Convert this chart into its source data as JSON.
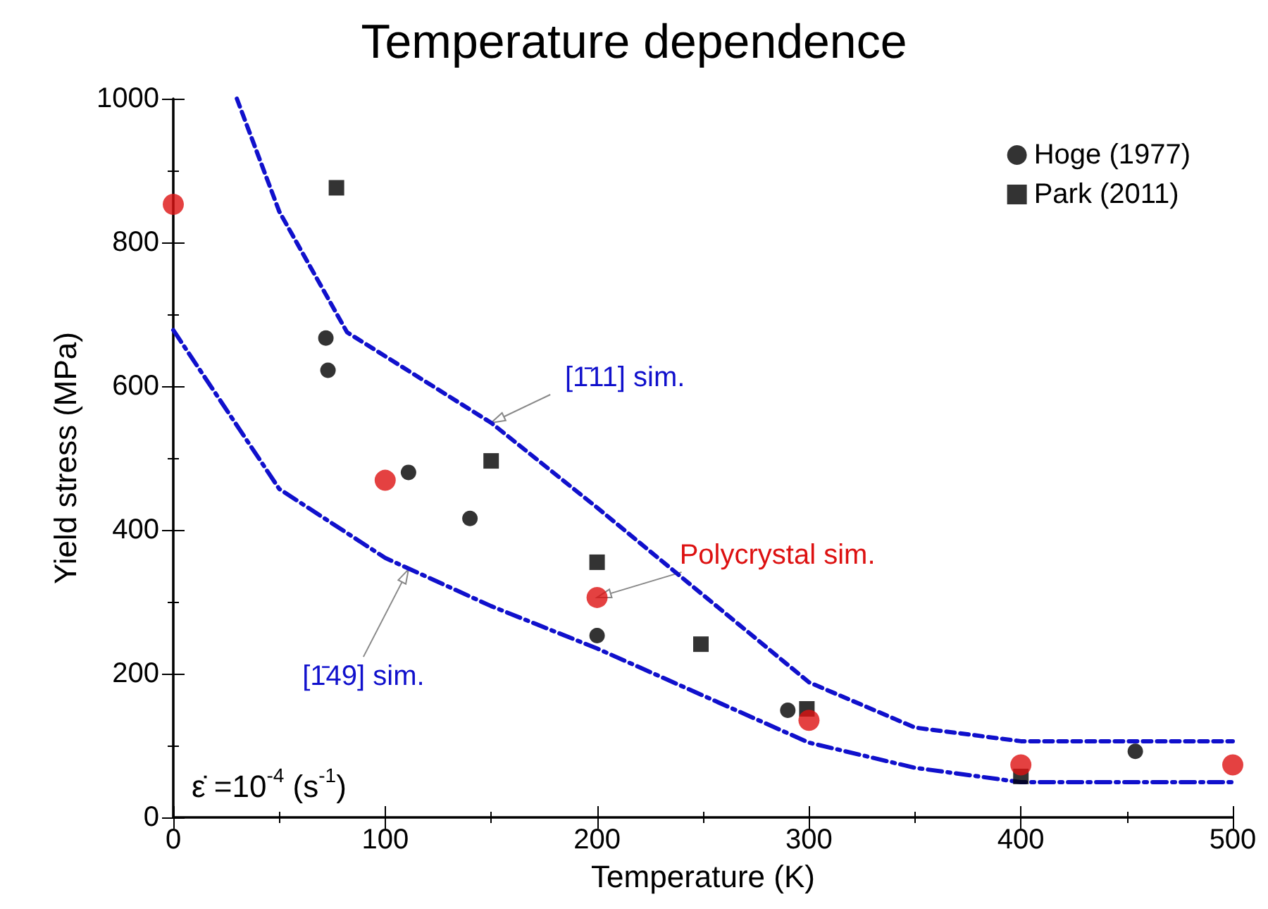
{
  "chart_data": {
    "type": "scatter",
    "title": "Temperature dependence",
    "xlabel": "Temperature (K)",
    "ylabel": "Yield stress (MPa)",
    "xlim": [
      0,
      500
    ],
    "xticks": [
      0,
      100,
      200,
      300,
      400,
      500
    ],
    "ylim": [
      0,
      1000
    ],
    "yticks": [
      0,
      200,
      400,
      600,
      800,
      1000
    ],
    "grid": false,
    "legend": "top right",
    "series": [
      {
        "name": "Hoge (1977)",
        "color": "#000000",
        "marker": "circle",
        "x": [
          72,
          73,
          111,
          140,
          200,
          290,
          454
        ],
        "values": [
          667,
          622,
          480,
          416,
          253,
          149,
          92
        ]
      },
      {
        "name": "Park (2011)",
        "color": "#000000",
        "marker": "square",
        "x": [
          77,
          150,
          200,
          249,
          299,
          400
        ],
        "values": [
          876,
          496,
          355,
          241,
          151,
          57
        ]
      },
      {
        "color": "#dd1111",
        "marker": "circle",
        "x": [
          0,
          100,
          200,
          300,
          400,
          500
        ],
        "values": [
          853,
          469,
          306,
          135,
          73,
          73
        ]
      },
      {
        "type": "line",
        "color": "#1010cc",
        "line_style": "dashed",
        "marker": "none",
        "x": [
          30,
          50,
          82,
          150,
          200,
          300,
          350,
          400,
          500
        ],
        "values": [
          1000,
          843,
          675,
          549,
          431,
          188,
          125,
          106,
          106
        ]
      },
      {
        "type": "line",
        "color": "#1010cc",
        "line_style": "dashdot",
        "marker": "none",
        "x": [
          0,
          50,
          100,
          150,
          200,
          300,
          350,
          400,
          500
        ],
        "values": [
          678,
          457,
          361,
          294,
          235,
          104,
          69,
          49,
          49
        ]
      }
    ],
    "annotations": [
      {
        "text": "[1̄11] sim.",
        "x": 150,
        "y": 549
      },
      {
        "text": "Polycrystal sim.",
        "x": 200,
        "y": 306
      },
      {
        "text": "[1̄49] sim.",
        "x": 111,
        "y": 345
      },
      "ε̇ =10$^{-4}$ (s$^{-1}$)"
    ]
  }
}
